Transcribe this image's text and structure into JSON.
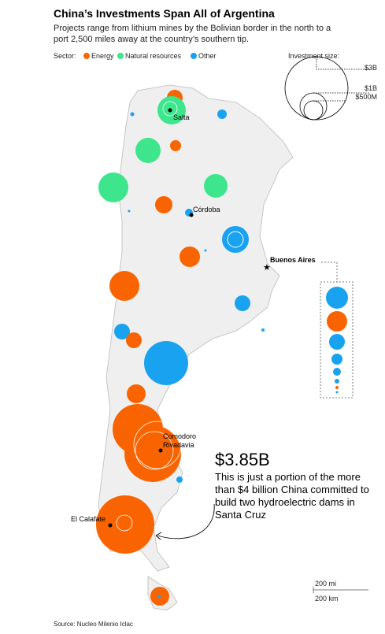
{
  "header": {
    "title": "China’s Investments Span All of Argentina",
    "subtitle": "Projects range from lithium mines by the Bolivian border in the north to a port 2,500 miles away at the country’s southern tip."
  },
  "legend": {
    "label": "Sector:",
    "items": [
      "Energy",
      "Natural resources",
      "Other"
    ],
    "size_title": "Investment size:",
    "sizes": [
      "$3B",
      "$1B",
      "$500M"
    ]
  },
  "places": [
    "Salta",
    "Córdoba",
    "Buenos Aires",
    "Comodoro Rivadavia",
    "El Calafate"
  ],
  "annotation": {
    "value": "$3.85B",
    "text": "This is just a portion of the more than $4 billion China committed to build two hydroelectric dams in Santa Cruz"
  },
  "scale": [
    "200 mi",
    "200 km"
  ],
  "source": "Source: Nucleo Milenio Iclac"
}
